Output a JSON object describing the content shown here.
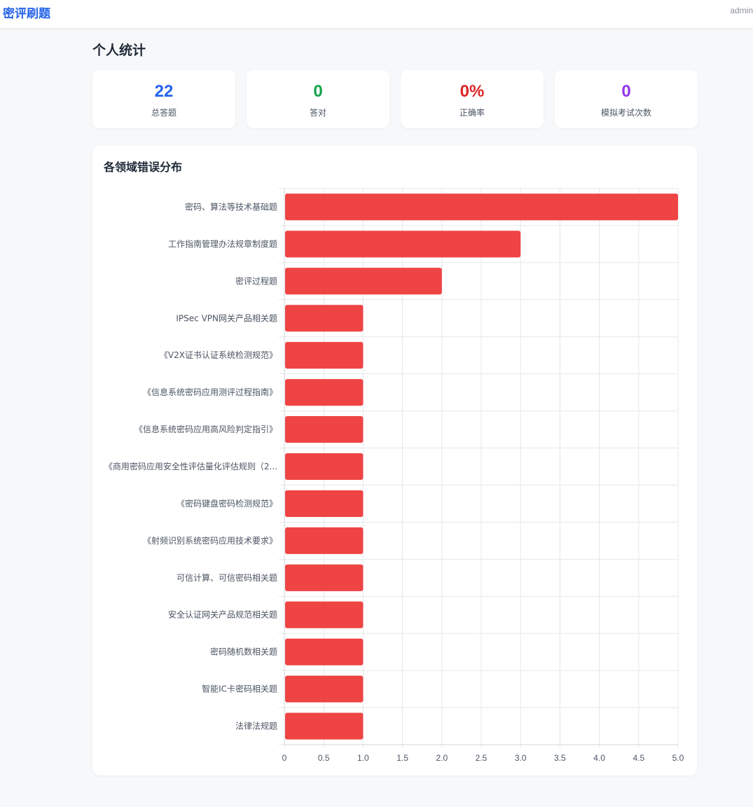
{
  "header": {
    "brand": "密评刷题",
    "user": "admin"
  },
  "page": {
    "title": "个人统计"
  },
  "stats": [
    {
      "value": "22",
      "label": "总答题",
      "color": "#2563eb"
    },
    {
      "value": "0",
      "label": "答对",
      "color": "#16a34a"
    },
    {
      "value": "0%",
      "label": "正确率",
      "color": "#dc2626"
    },
    {
      "value": "0",
      "label": "模拟考试次数",
      "color": "#9333ea"
    }
  ],
  "chart_card": {
    "title": "各领域错误分布"
  },
  "chart_data": {
    "type": "bar",
    "orientation": "horizontal",
    "title": "各领域错误分布",
    "xlabel": "",
    "ylabel": "",
    "xlim": [
      0,
      5
    ],
    "x_ticks": [
      "0",
      "0.5",
      "1.0",
      "1.5",
      "2.0",
      "2.5",
      "3.0",
      "3.5",
      "4.0",
      "4.5",
      "5.0"
    ],
    "grid": true,
    "bar_color": "#ef4444",
    "categories": [
      "密码、算法等技术基础题",
      "工作指南管理办法规章制度题",
      "密评过程题",
      "IPSec  VPN网关产品相关题",
      "《V2X证书认证系统检测规范》",
      "《信息系统密码应用测评过程指南》",
      "《信息系统密码应用高风险判定指引》",
      "《商用密码应用安全性评估量化评估规则（2...",
      "《密码键盘密码检测规范》",
      "《射频识别系统密码应用技术要求》",
      "可信计算、可信密码相关题",
      "安全认证网关产品规范相关题",
      "密码随机数相关题",
      "智能IC卡密码相关题",
      "法律法规题"
    ],
    "values": [
      5,
      3,
      2,
      1,
      1,
      1,
      1,
      1,
      1,
      1,
      1,
      1,
      1,
      1,
      1
    ]
  }
}
